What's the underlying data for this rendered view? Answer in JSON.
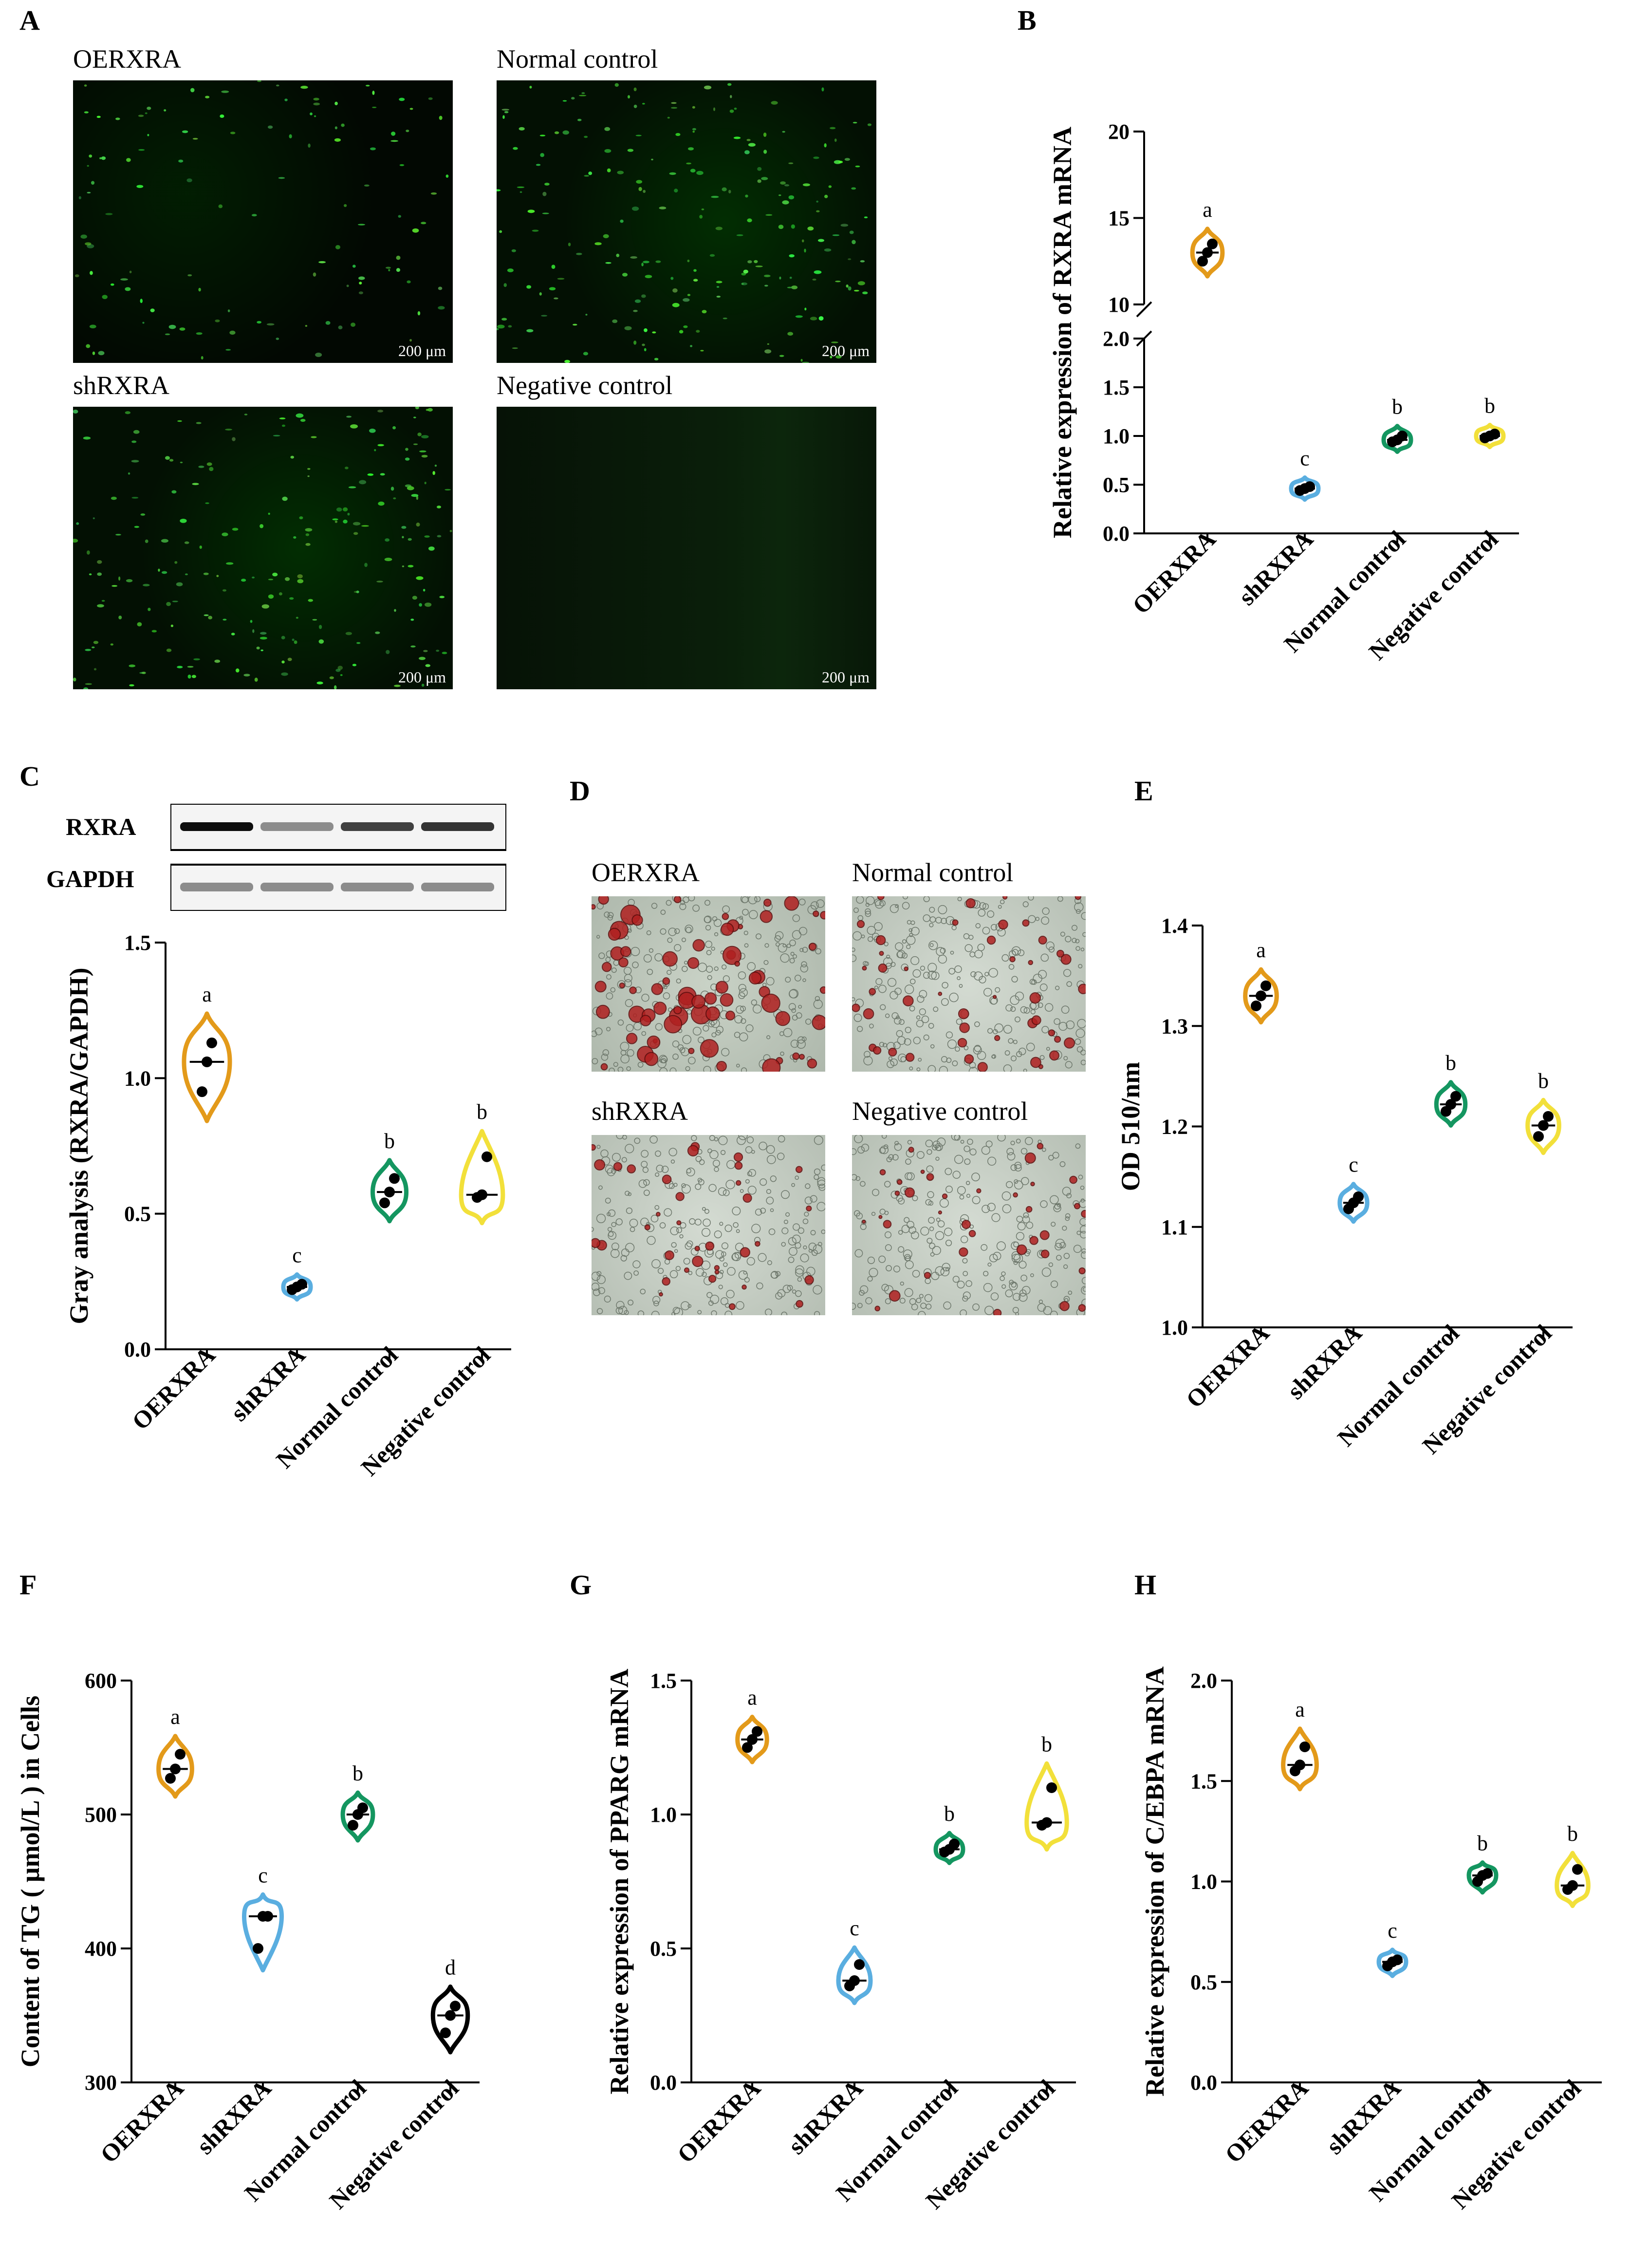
{
  "panel_letters": {
    "A": "A",
    "B": "B",
    "C": "C",
    "D": "D",
    "E": "E",
    "F": "F",
    "G": "G",
    "H": "H"
  },
  "panel_A": {
    "images": [
      {
        "label": "OERXRA",
        "scale": "200 μm"
      },
      {
        "label": "Normal control",
        "scale": "200 μm"
      },
      {
        "label": "shRXRA",
        "scale": "200 μm"
      },
      {
        "label": "Negative control",
        "scale": "200 μm"
      }
    ]
  },
  "panel_D": {
    "images": [
      {
        "label": "OERXRA"
      },
      {
        "label": "Normal control"
      },
      {
        "label": "shRXRA"
      },
      {
        "label": "Negative control"
      }
    ]
  },
  "blot": {
    "band1": "RXRA",
    "band2": "GAPDH",
    "rxra_intensity": [
      0.95,
      0.45,
      0.75,
      0.8
    ]
  },
  "colors": {
    "OERXRA": "#E39A1A",
    "shRXRA": "#5AAEE0",
    "Normal control": "#149660",
    "Negative control": "#F2E03A",
    "Negative control (F)": "#000000"
  },
  "chart_data": [
    {
      "panel": "B",
      "type": "violin",
      "categories": [
        "OERXRA",
        "shRXRA",
        "Normal control",
        "Negative control"
      ],
      "ylabel": "Relative expression of RXRA mRNA",
      "ylim": [
        0,
        20
      ],
      "axis_break": [
        2.0,
        10
      ],
      "yticks_lower": [
        "0.0",
        "0.5",
        "1.0",
        "1.5",
        "2.0"
      ],
      "yticks_upper": [
        "10",
        "15",
        "20"
      ],
      "points": [
        [
          12.5,
          13.0,
          13.5
        ],
        [
          0.44,
          0.46,
          0.48
        ],
        [
          0.94,
          0.96,
          1.0
        ],
        [
          0.98,
          1.0,
          1.02
        ]
      ],
      "medians": [
        13.0,
        0.46,
        0.96,
        1.0
      ],
      "letters": [
        "a",
        "c",
        "b",
        "b"
      ]
    },
    {
      "panel": "C",
      "type": "violin",
      "categories": [
        "OERXRA",
        "shRXRA",
        "Normal control",
        "Negative control"
      ],
      "ylabel": "Gray analysis (RXRA/GAPDH)",
      "ylim": [
        0,
        1.5
      ],
      "yticks": [
        "0.0",
        "0.5",
        "1.0",
        "1.5"
      ],
      "points": [
        [
          0.95,
          1.06,
          1.13
        ],
        [
          0.22,
          0.23,
          0.24
        ],
        [
          0.54,
          0.58,
          0.63
        ],
        [
          0.56,
          0.57,
          0.71
        ]
      ],
      "medians": [
        1.06,
        0.23,
        0.58,
        0.57
      ],
      "letters": [
        "a",
        "c",
        "b",
        "b"
      ]
    },
    {
      "panel": "E",
      "type": "violin",
      "categories": [
        "OERXRA",
        "shRXRA",
        "Normal control",
        "Negative control"
      ],
      "ylabel": "OD 510/nm",
      "ylim": [
        1.0,
        1.4
      ],
      "yticks": [
        "1.0",
        "1.1",
        "1.2",
        "1.3",
        "1.4"
      ],
      "points": [
        [
          1.32,
          1.33,
          1.34
        ],
        [
          1.118,
          1.124,
          1.13
        ],
        [
          1.215,
          1.222,
          1.23
        ],
        [
          1.19,
          1.201,
          1.21
        ]
      ],
      "medians": [
        1.33,
        1.124,
        1.222,
        1.201
      ],
      "letters": [
        "a",
        "c",
        "b",
        "b"
      ]
    },
    {
      "panel": "F",
      "type": "violin",
      "categories": [
        "OERXRA",
        "shRXRA",
        "Normal control",
        "Negative control"
      ],
      "ylabel": "Content of TG ( μmol/L ) in Cells",
      "ylim": [
        300,
        600
      ],
      "yticks": [
        "300",
        "400",
        "500",
        "600"
      ],
      "points": [
        [
          527,
          534,
          545
        ],
        [
          400,
          424,
          424
        ],
        [
          492,
          500,
          505
        ],
        [
          337,
          350,
          357
        ]
      ],
      "medians": [
        534,
        424,
        500,
        350
      ],
      "letters": [
        "a",
        "c",
        "b",
        "d"
      ]
    },
    {
      "panel": "G",
      "type": "violin",
      "categories": [
        "OERXRA",
        "shRXRA",
        "Normal control",
        "Negative control"
      ],
      "ylabel": "Relative expression of PPARG mRNA",
      "ylim": [
        0,
        1.5
      ],
      "yticks": [
        "0.0",
        "0.5",
        "1.0",
        "1.5"
      ],
      "points": [
        [
          1.25,
          1.28,
          1.31
        ],
        [
          0.36,
          0.38,
          0.44
        ],
        [
          0.86,
          0.87,
          0.89
        ],
        [
          0.96,
          0.97,
          1.1
        ]
      ],
      "medians": [
        1.28,
        0.38,
        0.87,
        0.97
      ],
      "letters": [
        "a",
        "c",
        "b",
        "b"
      ]
    },
    {
      "panel": "H",
      "type": "violin",
      "categories": [
        "OERXRA",
        "shRXRA",
        "Normal control",
        "Negative control"
      ],
      "ylabel": "Relative expression of C/EBPA mRNA",
      "ylim": [
        0,
        2.0
      ],
      "yticks": [
        "0.0",
        "0.5",
        "1.0",
        "1.5",
        "2.0"
      ],
      "points": [
        [
          1.55,
          1.58,
          1.67
        ],
        [
          0.58,
          0.6,
          0.61
        ],
        [
          1.0,
          1.03,
          1.04
        ],
        [
          0.96,
          0.98,
          1.06
        ]
      ],
      "medians": [
        1.58,
        0.6,
        1.03,
        0.98
      ],
      "letters": [
        "a",
        "c",
        "b",
        "b"
      ]
    }
  ]
}
